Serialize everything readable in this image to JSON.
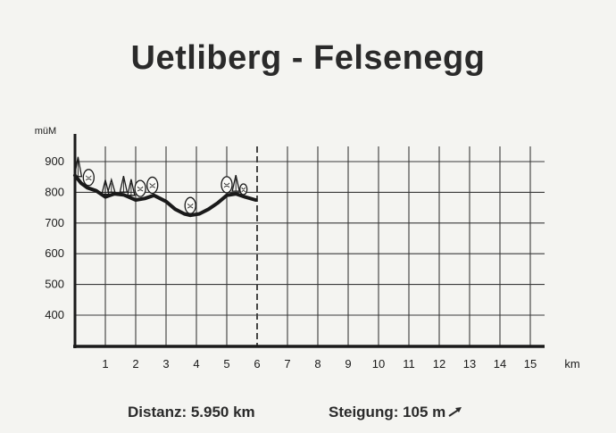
{
  "chart_data": {
    "type": "line",
    "title": "Uetliberg - Felsenegg",
    "xlabel": "km",
    "ylabel": "müM",
    "xlim": [
      0,
      15
    ],
    "ylim": [
      300,
      900
    ],
    "x_ticks": [
      "1",
      "2",
      "3",
      "4",
      "5",
      "6",
      "7",
      "8",
      "9",
      "10",
      "11",
      "12",
      "13",
      "14",
      "15"
    ],
    "y_ticks": [
      "400",
      "500",
      "600",
      "700",
      "800",
      "900"
    ],
    "grid": true,
    "route_end_km": 5.95,
    "series": [
      {
        "x": [
          0,
          0.2,
          0.4,
          0.7,
          1.0,
          1.3,
          1.6,
          2.0,
          2.3,
          2.6,
          3.0,
          3.3,
          3.6,
          3.8,
          4.1,
          4.4,
          4.7,
          5.0,
          5.3,
          5.6,
          5.95
        ],
        "y": [
          855,
          830,
          815,
          805,
          785,
          795,
          792,
          775,
          780,
          790,
          770,
          745,
          730,
          725,
          730,
          745,
          765,
          790,
          795,
          785,
          775
        ]
      }
    ]
  },
  "footer": {
    "distanz": "Distanz: 5.950 km",
    "steigung": "Steigung: 105 m"
  },
  "colors": {
    "ink": "#1a1a1a",
    "grid": "#3a3a3a",
    "paper": "#f4f4f1"
  }
}
